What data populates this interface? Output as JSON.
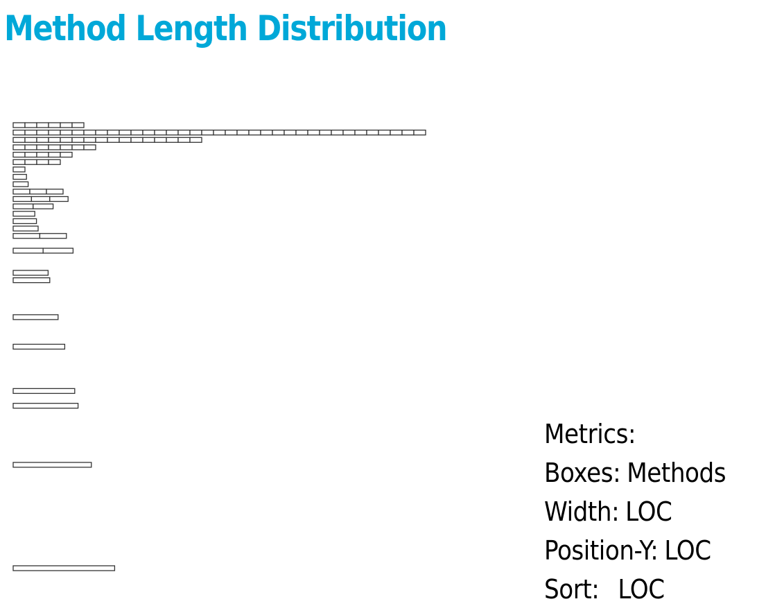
{
  "title": "Method Length Distribution",
  "title_color": "#00a8d8",
  "legend": {
    "heading": "Metrics:",
    "rows": [
      {
        "key": "Boxes:",
        "value": "Methods"
      },
      {
        "key": "Width:",
        "value": "LOC"
      },
      {
        "key": "Position-Y:",
        "value": "LOC"
      },
      {
        "key": "Sort:",
        "value": "LOC"
      }
    ]
  },
  "box_stroke": "#333333",
  "box_fill": "#ffffff",
  "chart_data": {
    "type": "stacked-boxes",
    "box_metric": "Methods",
    "width_metric": "LOC",
    "position_y_metric": "LOC",
    "sort_metric": "LOC",
    "rows": [
      {
        "loc": 1,
        "count": 6
      },
      {
        "loc": 2,
        "count": 35
      },
      {
        "loc": 3,
        "count": 16
      },
      {
        "loc": 4,
        "count": 7
      },
      {
        "loc": 5,
        "count": 5
      },
      {
        "loc": 6,
        "count": 4
      },
      {
        "loc": 7,
        "count": 1
      },
      {
        "loc": 8,
        "count": 1
      },
      {
        "loc": 9,
        "count": 1
      },
      {
        "loc": 10,
        "count": 3
      },
      {
        "loc": 11,
        "count": 3
      },
      {
        "loc": 12,
        "count": 2
      },
      {
        "loc": 13,
        "count": 1
      },
      {
        "loc": 14,
        "count": 1
      },
      {
        "loc": 15,
        "count": 1
      },
      {
        "loc": 16,
        "count": 2
      },
      {
        "loc": 18,
        "count": 2
      },
      {
        "loc": 21,
        "count": 1
      },
      {
        "loc": 22,
        "count": 1
      },
      {
        "loc": 27,
        "count": 1
      },
      {
        "loc": 31,
        "count": 1
      },
      {
        "loc": 37,
        "count": 1
      },
      {
        "loc": 39,
        "count": 1
      },
      {
        "loc": 47,
        "count": 1
      },
      {
        "loc": 61,
        "count": 1
      }
    ]
  }
}
